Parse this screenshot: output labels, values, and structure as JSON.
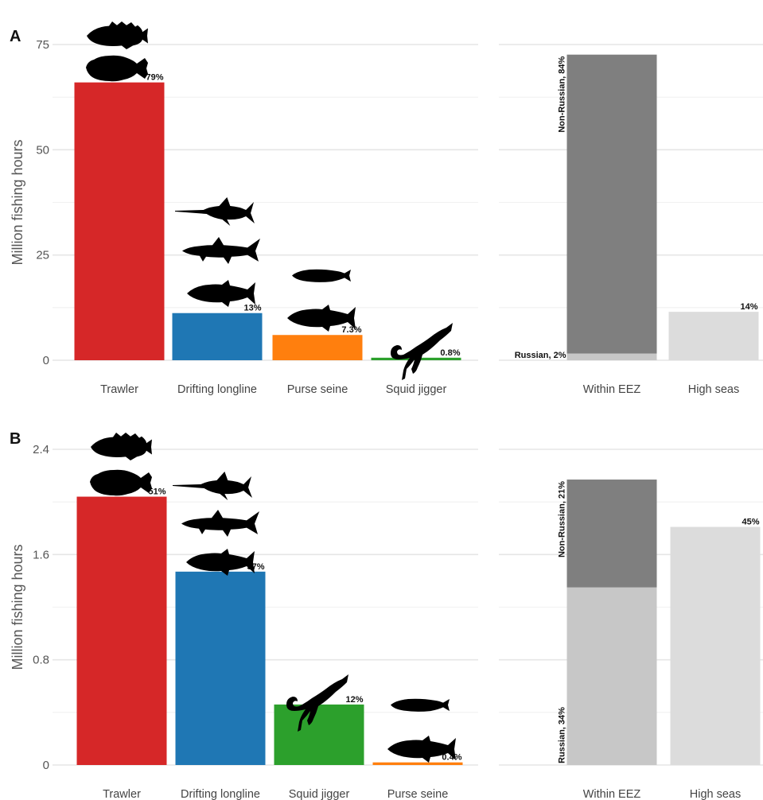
{
  "chart_data": [
    {
      "panel": "A",
      "type": "bar",
      "ylabel": "Million fishing hours",
      "ylim": [
        0,
        75
      ],
      "yticks": [
        0,
        25,
        50,
        75
      ],
      "grid": true,
      "left": {
        "categories": [
          "Trawler",
          "Drifting longline",
          "Purse seine",
          "Squid jigger"
        ],
        "values": [
          66,
          11.2,
          6.0,
          0.6
        ],
        "labels": [
          "79%",
          "13%",
          "7.3%",
          "0.8%"
        ],
        "colors": [
          "#d62728",
          "#1f77b4",
          "#ff7f0e",
          "#2ca02c"
        ],
        "icons": [
          [
            "rockfish-icon",
            "flatfish-icon"
          ],
          [
            "swordfish-icon",
            "shark-icon",
            "tuna-icon"
          ],
          [
            "sardine-icon",
            "tuna-icon"
          ],
          [
            "squid-icon"
          ]
        ]
      },
      "right": {
        "categories": [
          "Within EEZ",
          "High seas"
        ],
        "stacks": [
          [
            {
              "name": "Russian",
              "value": 1.6,
              "label": "Russian, 2%",
              "color": "#c7c7c7",
              "label_style": "outside-left"
            },
            {
              "name": "Non-Russian",
              "value": 71,
              "label": "Non-Russian, 84%",
              "color": "#7f7f7f",
              "label_style": "vertical-top"
            }
          ],
          [
            {
              "name": "High seas",
              "value": 11.5,
              "label": "14%",
              "color": "#dcdcdc",
              "label_style": "top-right"
            }
          ]
        ]
      }
    },
    {
      "panel": "B",
      "type": "bar",
      "ylabel": "Million fishing hours",
      "ylim": [
        0,
        2.4
      ],
      "yticks": [
        0,
        0.8,
        1.6,
        2.4
      ],
      "ytick_labels": [
        "0",
        "0.8",
        "1.6",
        "2.4"
      ],
      "grid": true,
      "left": {
        "categories": [
          "Trawler",
          "Drifting longline",
          "Squid jigger",
          "Purse seine"
        ],
        "values": [
          2.04,
          1.47,
          0.46,
          0.02
        ],
        "labels": [
          "51%",
          "37%",
          "12%",
          "0.4%"
        ],
        "colors": [
          "#d62728",
          "#1f77b4",
          "#2ca02c",
          "#ff7f0e"
        ],
        "icons": [
          [
            "rockfish-icon",
            "flatfish-icon"
          ],
          [
            "swordfish-icon",
            "shark-icon",
            "tuna-icon"
          ],
          [
            "squid-icon"
          ],
          [
            "sardine-icon",
            "tuna-icon"
          ]
        ]
      },
      "right": {
        "categories": [
          "Within EEZ",
          "High seas"
        ],
        "stacks": [
          [
            {
              "name": "Russian",
              "value": 1.35,
              "label": "Russian, 34%",
              "color": "#c7c7c7",
              "label_style": "vertical-bottom"
            },
            {
              "name": "Non-Russian",
              "value": 0.82,
              "label": "Non-Russian, 21%",
              "color": "#7f7f7f",
              "label_style": "vertical-top"
            }
          ],
          [
            {
              "name": "High seas",
              "value": 1.81,
              "label": "45%",
              "color": "#dcdcdc",
              "label_style": "top-right"
            }
          ]
        ]
      }
    }
  ]
}
